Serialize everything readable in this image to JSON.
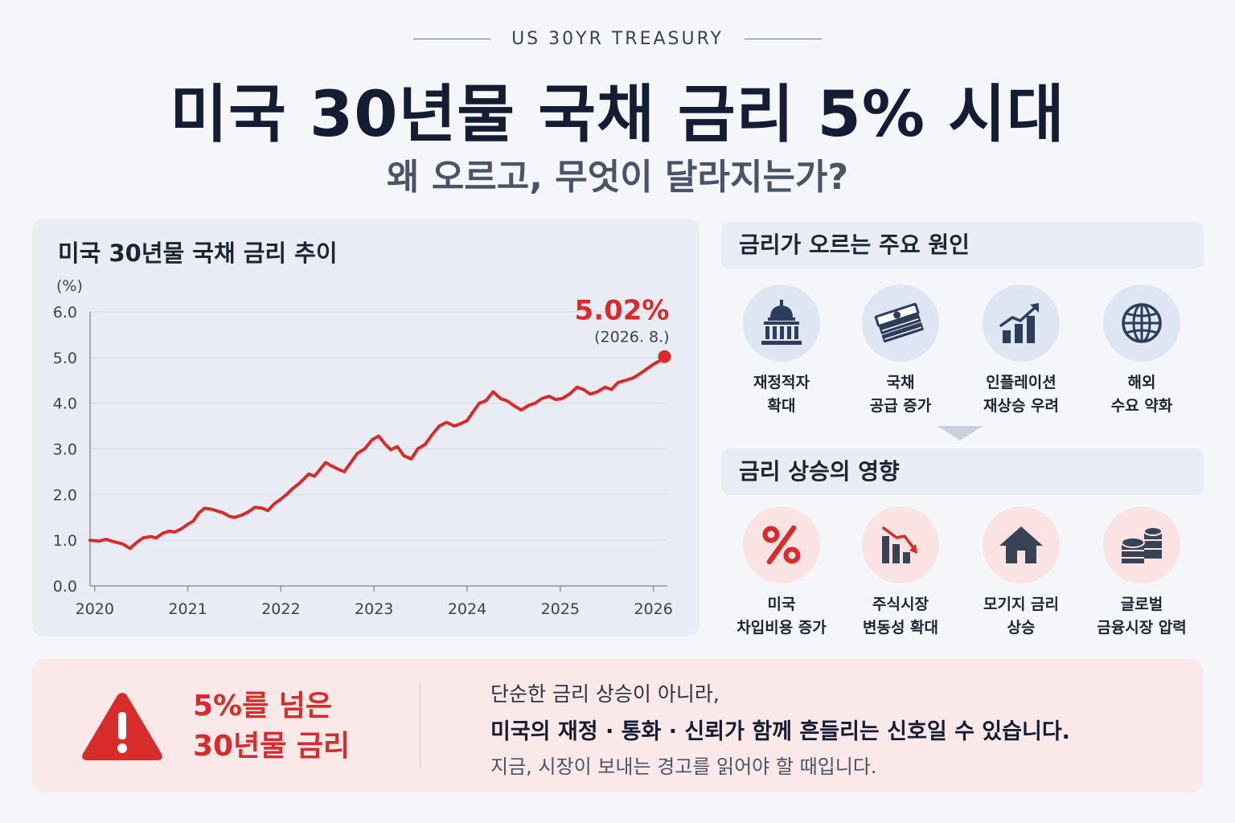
{
  "header": {
    "kicker": "US 30YR TREASURY",
    "title": "미국 30년물 국채 금리 5% 시대",
    "subtitle": "왜 오르고, 무엇이 달라지는가?"
  },
  "chart_data": {
    "type": "line",
    "title": "미국 30년물 국채 금리 추이",
    "ylabel": "(%)",
    "xlabel": "",
    "ylim": [
      0,
      6
    ],
    "yticks": [
      0.0,
      1.0,
      2.0,
      3.0,
      4.0,
      5.0,
      6.0
    ],
    "ytick_labels": [
      "0.0",
      "1.0",
      "2.0",
      "3.0",
      "4.0",
      "5.0",
      "6.0"
    ],
    "xlim": [
      2019.95,
      2026.15
    ],
    "xticks": [
      2020,
      2021,
      2022,
      2023,
      2024,
      2025,
      2026
    ],
    "xtick_labels": [
      "2020",
      "2021",
      "2022",
      "2023",
      "2024",
      "2025",
      "2026"
    ],
    "grid": true,
    "series": [
      {
        "color": "#d82c2c",
        "x": [
          2019.95,
          2020.05,
          2020.12,
          2020.2,
          2020.3,
          2020.38,
          2020.45,
          2020.52,
          2020.6,
          2020.66,
          2020.73,
          2020.8,
          2020.86,
          2020.93,
          2021.0,
          2021.06,
          2021.12,
          2021.18,
          2021.25,
          2021.3,
          2021.38,
          2021.45,
          2021.5,
          2021.58,
          2021.65,
          2021.72,
          2021.8,
          2021.86,
          2021.93,
          2022.0,
          2022.06,
          2022.12,
          2022.2,
          2022.25,
          2022.3,
          2022.36,
          2022.42,
          2022.48,
          2022.55,
          2022.62,
          2022.68,
          2022.75,
          2022.82,
          2022.9,
          2022.98,
          2023.05,
          2023.12,
          2023.18,
          2023.25,
          2023.32,
          2023.4,
          2023.47,
          2023.55,
          2023.62,
          2023.7,
          2023.78,
          2023.86,
          2023.93,
          2024.0,
          2024.06,
          2024.13,
          2024.2,
          2024.28,
          2024.36,
          2024.43,
          2024.5,
          2024.58,
          2024.66,
          2024.73,
          2024.8,
          2024.88,
          2024.95,
          2025.02,
          2025.1,
          2025.18,
          2025.25,
          2025.32,
          2025.4,
          2025.48,
          2025.55,
          2025.62,
          2025.7,
          2025.78,
          2025.86,
          2025.93,
          2026.0,
          2026.06,
          2026.12
        ],
        "y": [
          1.0,
          0.98,
          1.02,
          0.97,
          0.92,
          0.82,
          0.95,
          1.05,
          1.08,
          1.05,
          1.15,
          1.2,
          1.18,
          1.25,
          1.35,
          1.42,
          1.6,
          1.7,
          1.68,
          1.65,
          1.6,
          1.52,
          1.5,
          1.55,
          1.62,
          1.72,
          1.7,
          1.65,
          1.8,
          1.9,
          2.0,
          2.12,
          2.25,
          2.35,
          2.45,
          2.4,
          2.55,
          2.7,
          2.62,
          2.55,
          2.5,
          2.7,
          2.9,
          3.0,
          3.2,
          3.28,
          3.1,
          2.98,
          3.05,
          2.85,
          2.78,
          3.0,
          3.1,
          3.3,
          3.5,
          3.58,
          3.5,
          3.55,
          3.62,
          3.8,
          4.0,
          4.05,
          4.25,
          4.1,
          4.05,
          3.95,
          3.85,
          3.95,
          4.0,
          4.1,
          4.15,
          4.08,
          4.1,
          4.2,
          4.35,
          4.3,
          4.2,
          4.25,
          4.35,
          4.3,
          4.45,
          4.5,
          4.55,
          4.65,
          4.75,
          4.85,
          4.92,
          5.02
        ]
      }
    ],
    "annotation": {
      "value_label": "5.02%",
      "date_label": "(2026. 8.)",
      "x": 2026.12,
      "y": 5.02
    }
  },
  "causes": {
    "title": "금리가 오르는 주요 원인",
    "items": [
      {
        "icon": "capitol-building-icon",
        "line1": "재정적자",
        "line2": "확대"
      },
      {
        "icon": "money-stack-icon",
        "line1": "국채",
        "line2": "공급 증가"
      },
      {
        "icon": "rising-bar-chart-icon",
        "line1": "인플레이션",
        "line2": "재상승 우려"
      },
      {
        "icon": "globe-icon",
        "line1": "해외",
        "line2": "수요 약화"
      }
    ]
  },
  "effects": {
    "title": "금리 상승의 영향",
    "items": [
      {
        "icon": "percent-icon",
        "line1": "미국",
        "line2": "차입비용 증가"
      },
      {
        "icon": "falling-bar-chart-icon",
        "line1": "주식시장",
        "line2": "변동성 확대"
      },
      {
        "icon": "house-icon",
        "line1": "모기지 금리",
        "line2": "상승"
      },
      {
        "icon": "coin-stack-icon",
        "line1": "글로벌",
        "line2": "금융시장 압력"
      }
    ]
  },
  "banner": {
    "headline_line1": "5%를 넘은",
    "headline_line2": "30년물 금리",
    "message1": "단순한 금리 상승이 아니라,",
    "message2": "미국의 재정 · 통화 · 신뢰가 함께 흔들리는 신호일 수 있습니다.",
    "message3": "지금, 시장이 보내는 경고를 읽어야 할 때입니다."
  },
  "colors": {
    "accent_red": "#d82c2c",
    "navy": "#2f3d5c",
    "card_bg": "#e9edf3"
  }
}
